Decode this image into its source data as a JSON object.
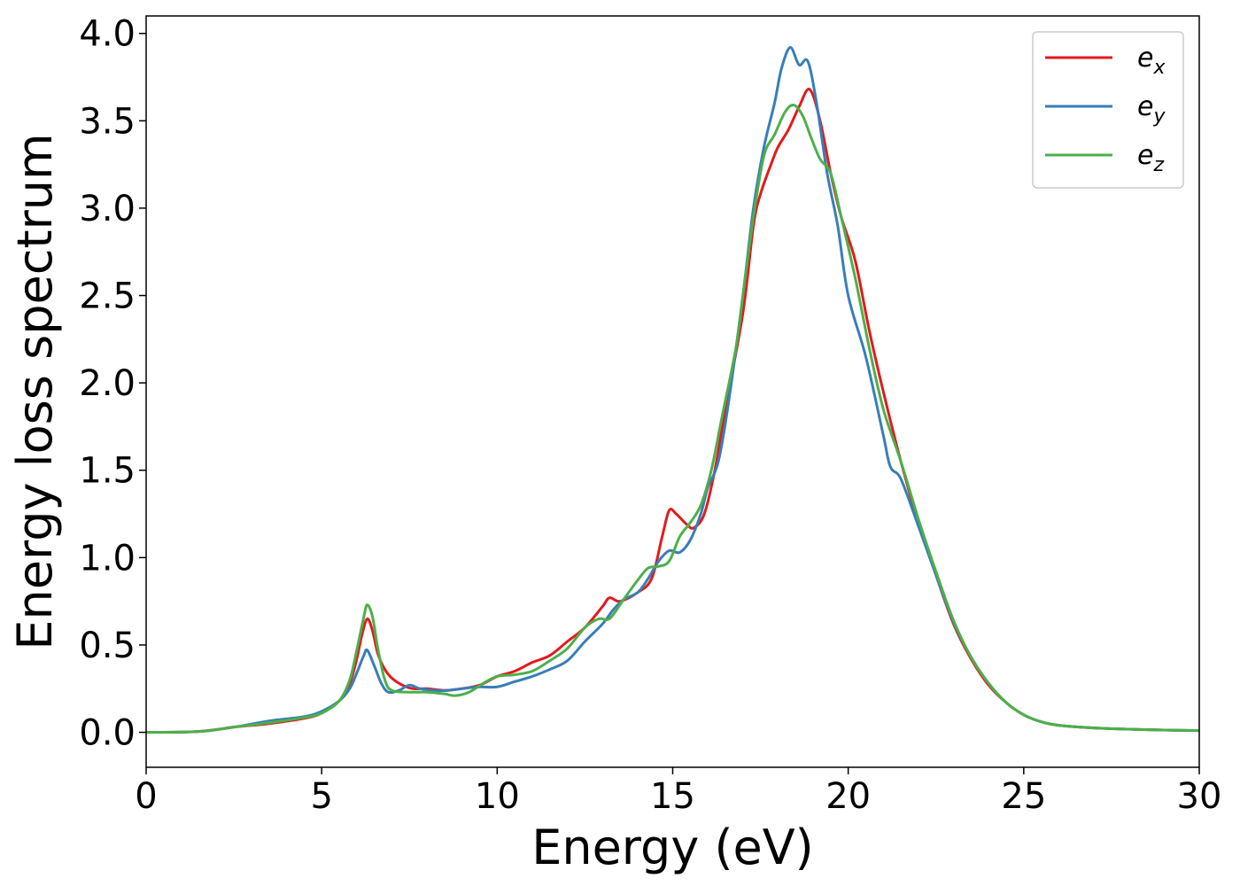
{
  "chart_data": {
    "type": "line",
    "xlabel": "Energy (eV)",
    "ylabel": "Energy loss spectrum",
    "xlim": [
      0,
      30
    ],
    "ylim": [
      -0.2,
      4.1
    ],
    "xticks": [
      0,
      5,
      10,
      15,
      20,
      25,
      30
    ],
    "xtick_labels": [
      "0",
      "5",
      "10",
      "15",
      "20",
      "25",
      "30"
    ],
    "yticks": [
      0.0,
      0.5,
      1.0,
      1.5,
      2.0,
      2.5,
      3.0,
      3.5,
      4.0
    ],
    "ytick_labels": [
      "0.0",
      "0.5",
      "1.0",
      "1.5",
      "2.0",
      "2.5",
      "3.0",
      "3.5",
      "4.0"
    ],
    "grid": false,
    "legend_position": "top-right",
    "series": [
      {
        "name": "e",
        "subscript": "x",
        "color": "#e41a1c",
        "points": [
          [
            0,
            0.0
          ],
          [
            1.5,
            0.005
          ],
          [
            2.5,
            0.03
          ],
          [
            3.5,
            0.05
          ],
          [
            4.5,
            0.08
          ],
          [
            5.0,
            0.11
          ],
          [
            5.5,
            0.18
          ],
          [
            5.8,
            0.28
          ],
          [
            6.0,
            0.42
          ],
          [
            6.15,
            0.56
          ],
          [
            6.3,
            0.65
          ],
          [
            6.45,
            0.58
          ],
          [
            6.6,
            0.45
          ],
          [
            6.8,
            0.36
          ],
          [
            7.0,
            0.31
          ],
          [
            7.3,
            0.27
          ],
          [
            7.6,
            0.25
          ],
          [
            8.0,
            0.25
          ],
          [
            8.5,
            0.24
          ],
          [
            9.0,
            0.25
          ],
          [
            9.5,
            0.27
          ],
          [
            10.0,
            0.32
          ],
          [
            10.5,
            0.35
          ],
          [
            11.0,
            0.4
          ],
          [
            11.5,
            0.44
          ],
          [
            12.0,
            0.52
          ],
          [
            12.5,
            0.6
          ],
          [
            13.0,
            0.72
          ],
          [
            13.2,
            0.77
          ],
          [
            13.5,
            0.75
          ],
          [
            14.0,
            0.8
          ],
          [
            14.4,
            0.88
          ],
          [
            14.7,
            1.12
          ],
          [
            14.9,
            1.27
          ],
          [
            15.1,
            1.25
          ],
          [
            15.4,
            1.19
          ],
          [
            15.6,
            1.17
          ],
          [
            15.9,
            1.25
          ],
          [
            16.2,
            1.5
          ],
          [
            16.5,
            1.85
          ],
          [
            17.0,
            2.4
          ],
          [
            17.3,
            2.9
          ],
          [
            17.5,
            3.08
          ],
          [
            17.8,
            3.25
          ],
          [
            18.0,
            3.35
          ],
          [
            18.3,
            3.45
          ],
          [
            18.6,
            3.58
          ],
          [
            18.9,
            3.68
          ],
          [
            19.2,
            3.5
          ],
          [
            19.5,
            3.2
          ],
          [
            19.8,
            2.95
          ],
          [
            20.2,
            2.7
          ],
          [
            20.6,
            2.3
          ],
          [
            21.0,
            1.95
          ],
          [
            21.5,
            1.55
          ],
          [
            22.0,
            1.2
          ],
          [
            22.5,
            0.9
          ],
          [
            23.0,
            0.62
          ],
          [
            23.5,
            0.42
          ],
          [
            24.0,
            0.27
          ],
          [
            24.5,
            0.17
          ],
          [
            25.0,
            0.1
          ],
          [
            25.5,
            0.06
          ],
          [
            26.0,
            0.04
          ],
          [
            27.0,
            0.025
          ],
          [
            28.0,
            0.018
          ],
          [
            29.0,
            0.013
          ],
          [
            30.0,
            0.01
          ]
        ]
      },
      {
        "name": "e",
        "subscript": "y",
        "color": "#377eb8",
        "points": [
          [
            0,
            0.0
          ],
          [
            1.5,
            0.005
          ],
          [
            2.5,
            0.03
          ],
          [
            3.5,
            0.065
          ],
          [
            4.5,
            0.09
          ],
          [
            5.0,
            0.12
          ],
          [
            5.5,
            0.18
          ],
          [
            5.8,
            0.25
          ],
          [
            6.0,
            0.34
          ],
          [
            6.2,
            0.44
          ],
          [
            6.3,
            0.47
          ],
          [
            6.5,
            0.38
          ],
          [
            6.7,
            0.28
          ],
          [
            6.9,
            0.23
          ],
          [
            7.2,
            0.24
          ],
          [
            7.5,
            0.27
          ],
          [
            7.8,
            0.25
          ],
          [
            8.2,
            0.24
          ],
          [
            8.6,
            0.24
          ],
          [
            9.0,
            0.25
          ],
          [
            9.5,
            0.26
          ],
          [
            10.0,
            0.26
          ],
          [
            10.5,
            0.29
          ],
          [
            11.0,
            0.32
          ],
          [
            11.5,
            0.36
          ],
          [
            12.0,
            0.41
          ],
          [
            12.5,
            0.52
          ],
          [
            13.0,
            0.62
          ],
          [
            13.3,
            0.7
          ],
          [
            13.6,
            0.76
          ],
          [
            14.0,
            0.8
          ],
          [
            14.3,
            0.88
          ],
          [
            14.6,
            0.98
          ],
          [
            14.9,
            1.04
          ],
          [
            15.2,
            1.03
          ],
          [
            15.5,
            1.1
          ],
          [
            15.8,
            1.25
          ],
          [
            16.0,
            1.4
          ],
          [
            16.3,
            1.55
          ],
          [
            16.6,
            1.9
          ],
          [
            17.0,
            2.5
          ],
          [
            17.3,
            3.0
          ],
          [
            17.6,
            3.35
          ],
          [
            17.9,
            3.6
          ],
          [
            18.1,
            3.8
          ],
          [
            18.35,
            3.92
          ],
          [
            18.6,
            3.82
          ],
          [
            18.85,
            3.84
          ],
          [
            19.1,
            3.6
          ],
          [
            19.4,
            3.2
          ],
          [
            19.7,
            2.9
          ],
          [
            20.0,
            2.5
          ],
          [
            20.5,
            2.15
          ],
          [
            21.0,
            1.7
          ],
          [
            21.2,
            1.52
          ],
          [
            21.5,
            1.45
          ],
          [
            22.0,
            1.18
          ],
          [
            22.5,
            0.9
          ],
          [
            23.0,
            0.63
          ],
          [
            23.5,
            0.43
          ],
          [
            24.0,
            0.28
          ],
          [
            24.5,
            0.17
          ],
          [
            25.0,
            0.1
          ],
          [
            25.5,
            0.06
          ],
          [
            26.0,
            0.04
          ],
          [
            27.0,
            0.025
          ],
          [
            28.0,
            0.018
          ],
          [
            29.0,
            0.013
          ],
          [
            30.0,
            0.01
          ]
        ]
      },
      {
        "name": "e",
        "subscript": "z",
        "color": "#4daf4a",
        "points": [
          [
            0,
            0.0
          ],
          [
            1.5,
            0.005
          ],
          [
            2.5,
            0.03
          ],
          [
            3.5,
            0.055
          ],
          [
            4.5,
            0.085
          ],
          [
            5.0,
            0.11
          ],
          [
            5.5,
            0.18
          ],
          [
            5.8,
            0.3
          ],
          [
            6.0,
            0.47
          ],
          [
            6.2,
            0.66
          ],
          [
            6.3,
            0.73
          ],
          [
            6.45,
            0.66
          ],
          [
            6.6,
            0.48
          ],
          [
            6.8,
            0.3
          ],
          [
            7.0,
            0.24
          ],
          [
            7.5,
            0.23
          ],
          [
            8.0,
            0.23
          ],
          [
            8.5,
            0.22
          ],
          [
            8.8,
            0.21
          ],
          [
            9.2,
            0.23
          ],
          [
            9.6,
            0.28
          ],
          [
            10.0,
            0.32
          ],
          [
            10.5,
            0.33
          ],
          [
            11.0,
            0.35
          ],
          [
            11.5,
            0.41
          ],
          [
            12.0,
            0.48
          ],
          [
            12.5,
            0.6
          ],
          [
            12.9,
            0.65
          ],
          [
            13.2,
            0.65
          ],
          [
            13.6,
            0.76
          ],
          [
            14.0,
            0.87
          ],
          [
            14.3,
            0.94
          ],
          [
            14.6,
            0.95
          ],
          [
            14.9,
            0.98
          ],
          [
            15.2,
            1.12
          ],
          [
            15.5,
            1.2
          ],
          [
            15.8,
            1.3
          ],
          [
            16.1,
            1.5
          ],
          [
            16.4,
            1.8
          ],
          [
            16.8,
            2.2
          ],
          [
            17.0,
            2.5
          ],
          [
            17.3,
            2.95
          ],
          [
            17.6,
            3.3
          ],
          [
            17.9,
            3.42
          ],
          [
            18.2,
            3.55
          ],
          [
            18.45,
            3.59
          ],
          [
            18.7,
            3.53
          ],
          [
            18.95,
            3.4
          ],
          [
            19.2,
            3.28
          ],
          [
            19.5,
            3.2
          ],
          [
            19.8,
            2.95
          ],
          [
            20.2,
            2.6
          ],
          [
            20.6,
            2.2
          ],
          [
            21.0,
            1.85
          ],
          [
            21.5,
            1.55
          ],
          [
            22.0,
            1.22
          ],
          [
            22.5,
            0.92
          ],
          [
            23.0,
            0.64
          ],
          [
            23.5,
            0.43
          ],
          [
            24.0,
            0.28
          ],
          [
            24.5,
            0.17
          ],
          [
            25.0,
            0.1
          ],
          [
            25.5,
            0.06
          ],
          [
            26.0,
            0.04
          ],
          [
            27.0,
            0.025
          ],
          [
            28.0,
            0.018
          ],
          [
            29.0,
            0.013
          ],
          [
            30.0,
            0.01
          ]
        ]
      }
    ]
  }
}
